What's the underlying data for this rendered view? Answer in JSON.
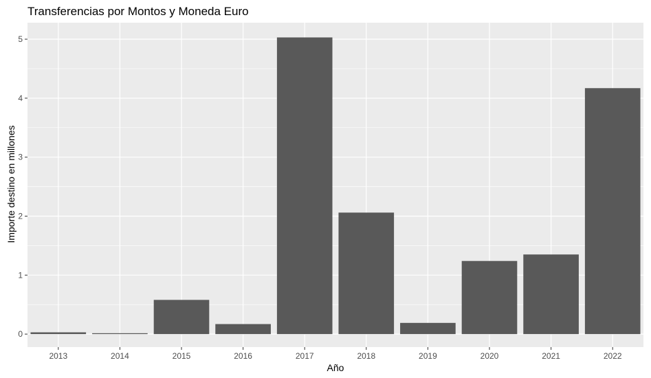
{
  "chart_data": {
    "type": "bar",
    "title": "Transferencias por Montos y Moneda Euro",
    "xlabel": "Año",
    "ylabel": "Importe destino en millones",
    "categories": [
      "2013",
      "2014",
      "2015",
      "2016",
      "2017",
      "2018",
      "2019",
      "2020",
      "2021",
      "2022"
    ],
    "values": [
      0.03,
      0.015,
      0.58,
      0.17,
      5.03,
      2.06,
      0.19,
      1.24,
      1.35,
      4.17
    ],
    "ylim": [
      -0.22,
      5.28
    ],
    "yticks": [
      0,
      1,
      2,
      3,
      4,
      5
    ],
    "grid": true,
    "colors": {
      "bar": "#595959",
      "panel": "#ebebeb",
      "grid": "#ffffff"
    }
  }
}
